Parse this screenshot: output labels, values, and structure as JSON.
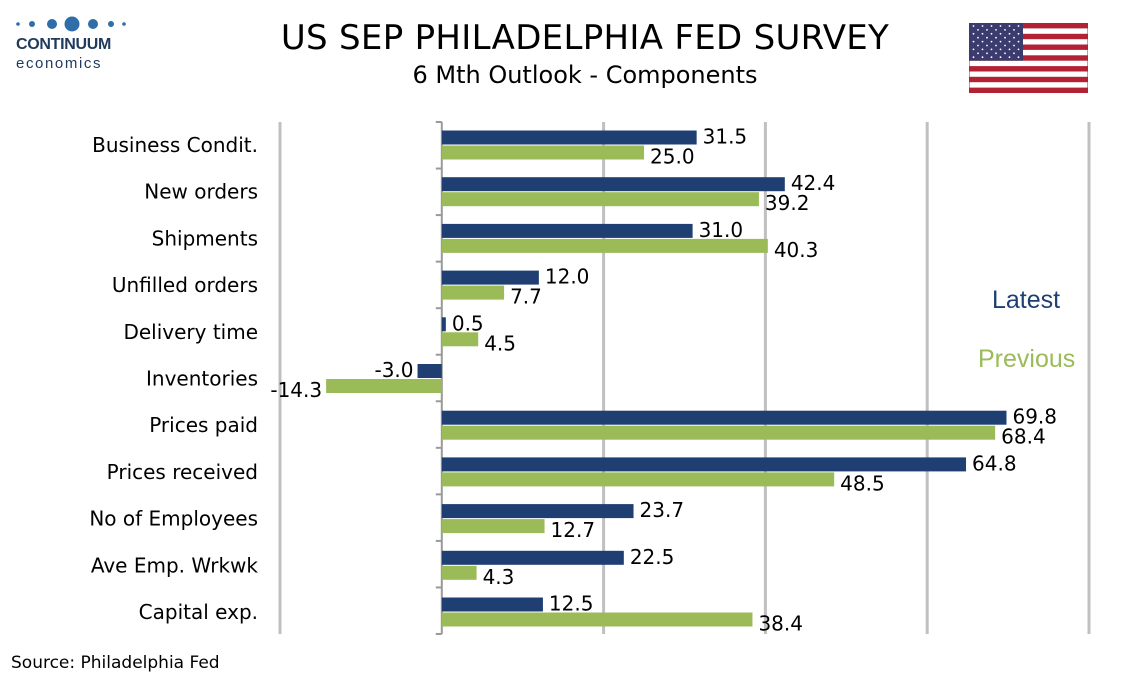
{
  "logo": {
    "brand": "CONTINUUM",
    "sub": "economics"
  },
  "header": {
    "title": "US SEP PHILADELPHIA FED SURVEY",
    "subtitle": "6 Mth Outlook - Components"
  },
  "source": "Source: Philadelphia Fed",
  "colors": {
    "latest": "#1f3f73",
    "previous": "#9bbb59",
    "gridline": "#c0c0c0"
  },
  "chart_data": {
    "type": "bar",
    "orientation": "horizontal",
    "categories": [
      "Business Condit.",
      "New orders",
      "Shipments",
      "Unfilled orders",
      "Delivery time",
      "Inventories",
      "Prices paid",
      "Prices received",
      "No of Employees",
      "Ave Emp. Wrkwk",
      "Capital exp."
    ],
    "series": [
      {
        "name": "Latest",
        "color": "#1f3f73",
        "values": [
          31.5,
          42.4,
          31.0,
          12.0,
          0.5,
          -3.0,
          69.8,
          64.8,
          23.7,
          22.5,
          12.5
        ]
      },
      {
        "name": "Previous",
        "color": "#9bbb59",
        "values": [
          25.0,
          39.2,
          40.3,
          7.7,
          4.5,
          -14.3,
          68.4,
          48.5,
          12.7,
          4.3,
          38.4
        ]
      }
    ],
    "xlim": [
      -20,
      80
    ],
    "gridlines": [
      -20,
      0,
      20,
      40,
      60,
      80
    ],
    "grid": true,
    "legend_position": "right"
  }
}
